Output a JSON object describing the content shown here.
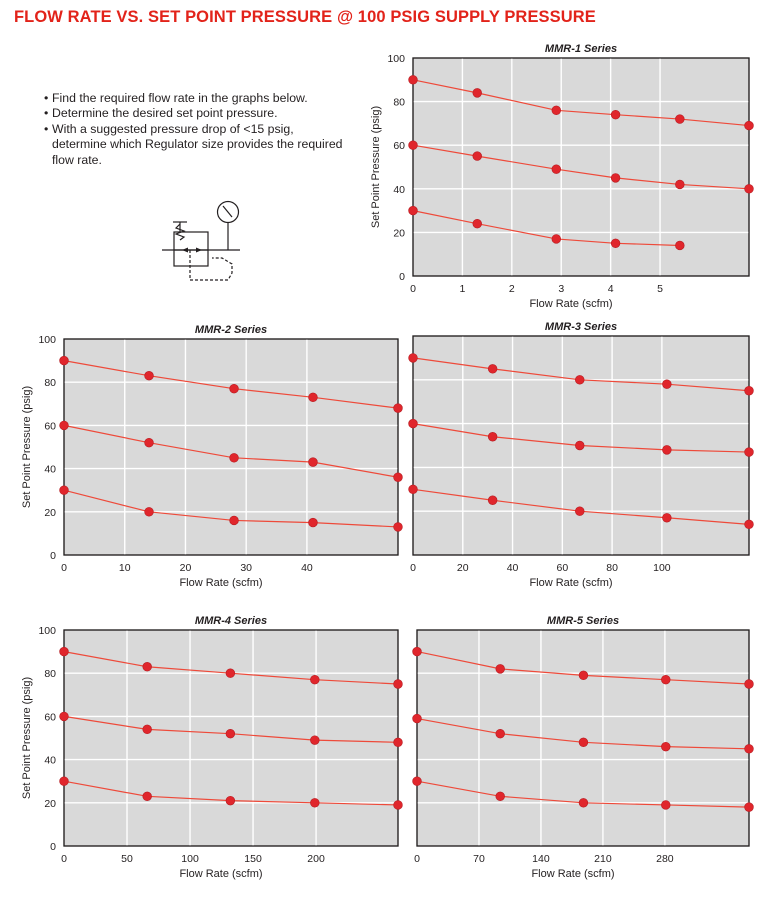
{
  "header": {
    "title": "FLOW RATE VS. SET POINT PRESSURE @ 100 PSIG SUPPLY PRESSURE"
  },
  "instructions": [
    "Find the required flow rate in the graphs below.",
    "Determine the desired set point pressure.",
    "With a suggested pressure drop of <15 psig, determine which Regulator size provides the required flow rate."
  ],
  "symbol": {
    "icon": "pressure-regulator-with-gauge-icon"
  },
  "colors": {
    "title": "#e2231a",
    "series": "#e0262c",
    "plot_bg": "#d9d9d9",
    "grid": "#ffffff"
  },
  "chart_data": [
    {
      "type": "line",
      "title": "MMR-1 Series",
      "xlabel": "Flow Rate (scfm)",
      "ylabel": "Set Point Pressure (psig)",
      "xlim": [
        0,
        6.8
      ],
      "ylim": [
        0,
        100
      ],
      "xticks": [
        0,
        1,
        2,
        3,
        4,
        5
      ],
      "yticks": [
        0,
        20,
        40,
        60,
        80,
        100
      ],
      "grid": true,
      "series": [
        {
          "points": [
            [
              0,
              90
            ],
            [
              1.3,
              84
            ],
            [
              2.9,
              76
            ],
            [
              4.1,
              74
            ],
            [
              5.4,
              72
            ],
            [
              6.8,
              69
            ]
          ]
        },
        {
          "points": [
            [
              0,
              60
            ],
            [
              1.3,
              55
            ],
            [
              2.9,
              49
            ],
            [
              4.1,
              45
            ],
            [
              5.4,
              42
            ],
            [
              6.8,
              40
            ]
          ]
        },
        {
          "points": [
            [
              0,
              30
            ],
            [
              1.3,
              24
            ],
            [
              2.9,
              17
            ],
            [
              4.1,
              15
            ],
            [
              5.4,
              14
            ]
          ]
        }
      ]
    },
    {
      "type": "line",
      "title": "MMR-2 Series",
      "xlabel": "Flow Rate (scfm)",
      "ylabel": "Set Point Pressure (psig)",
      "xlim": [
        0,
        55
      ],
      "ylim": [
        0,
        100
      ],
      "xticks": [
        0,
        10,
        20,
        30,
        40
      ],
      "yticks": [
        0,
        20,
        40,
        60,
        80,
        100
      ],
      "grid": true,
      "series": [
        {
          "points": [
            [
              0,
              90
            ],
            [
              14,
              83
            ],
            [
              28,
              77
            ],
            [
              41,
              73
            ],
            [
              55,
              68
            ]
          ]
        },
        {
          "points": [
            [
              0,
              60
            ],
            [
              14,
              52
            ],
            [
              28,
              45
            ],
            [
              41,
              43
            ],
            [
              55,
              36
            ]
          ]
        },
        {
          "points": [
            [
              0,
              30
            ],
            [
              14,
              20
            ],
            [
              28,
              16
            ],
            [
              41,
              15
            ],
            [
              55,
              13
            ]
          ]
        }
      ]
    },
    {
      "type": "line",
      "title": "MMR-3 Series",
      "xlabel": "Flow Rate (scfm)",
      "ylabel": "",
      "xlim": [
        0,
        135
      ],
      "ylim": [
        0,
        100
      ],
      "xticks": [
        0,
        20,
        40,
        60,
        80,
        100
      ],
      "yticks": [
        0,
        20,
        40,
        60,
        80,
        100
      ],
      "show_ytick_labels": false,
      "grid": true,
      "series": [
        {
          "points": [
            [
              0,
              90
            ],
            [
              32,
              85
            ],
            [
              67,
              80
            ],
            [
              102,
              78
            ],
            [
              135,
              75
            ]
          ]
        },
        {
          "points": [
            [
              0,
              60
            ],
            [
              32,
              54
            ],
            [
              67,
              50
            ],
            [
              102,
              48
            ],
            [
              135,
              47
            ]
          ]
        },
        {
          "points": [
            [
              0,
              30
            ],
            [
              32,
              25
            ],
            [
              67,
              20
            ],
            [
              102,
              17
            ],
            [
              135,
              14
            ]
          ]
        }
      ]
    },
    {
      "type": "line",
      "title": "MMR-4 Series",
      "xlabel": "Flow Rate (scfm)",
      "ylabel": "Set Point Pressure (psig)",
      "xlim": [
        0,
        265
      ],
      "ylim": [
        0,
        100
      ],
      "xticks": [
        0,
        50,
        100,
        150,
        200
      ],
      "yticks": [
        0,
        20,
        40,
        60,
        80,
        100
      ],
      "grid": true,
      "series": [
        {
          "points": [
            [
              0,
              90
            ],
            [
              66,
              83
            ],
            [
              132,
              80
            ],
            [
              199,
              77
            ],
            [
              265,
              75
            ]
          ]
        },
        {
          "points": [
            [
              0,
              60
            ],
            [
              66,
              54
            ],
            [
              132,
              52
            ],
            [
              199,
              49
            ],
            [
              265,
              48
            ]
          ]
        },
        {
          "points": [
            [
              0,
              30
            ],
            [
              66,
              23
            ],
            [
              132,
              21
            ],
            [
              199,
              20
            ],
            [
              265,
              19
            ]
          ]
        }
      ]
    },
    {
      "type": "line",
      "title": "MMR-5 Series",
      "xlabel": "Flow Rate (scfm)",
      "ylabel": "",
      "xlim": [
        0,
        375
      ],
      "ylim": [
        0,
        100
      ],
      "xticks": [
        0,
        70,
        140,
        210,
        280
      ],
      "yticks": [
        0,
        20,
        40,
        60,
        80,
        100
      ],
      "show_ytick_labels": false,
      "grid": true,
      "series": [
        {
          "points": [
            [
              0,
              90
            ],
            [
              94,
              82
            ],
            [
              188,
              79
            ],
            [
              281,
              77
            ],
            [
              375,
              75
            ]
          ]
        },
        {
          "points": [
            [
              0,
              59
            ],
            [
              94,
              52
            ],
            [
              188,
              48
            ],
            [
              281,
              46
            ],
            [
              375,
              45
            ]
          ]
        },
        {
          "points": [
            [
              0,
              30
            ],
            [
              94,
              23
            ],
            [
              188,
              20
            ],
            [
              281,
              19
            ],
            [
              375,
              18
            ]
          ]
        }
      ]
    }
  ]
}
